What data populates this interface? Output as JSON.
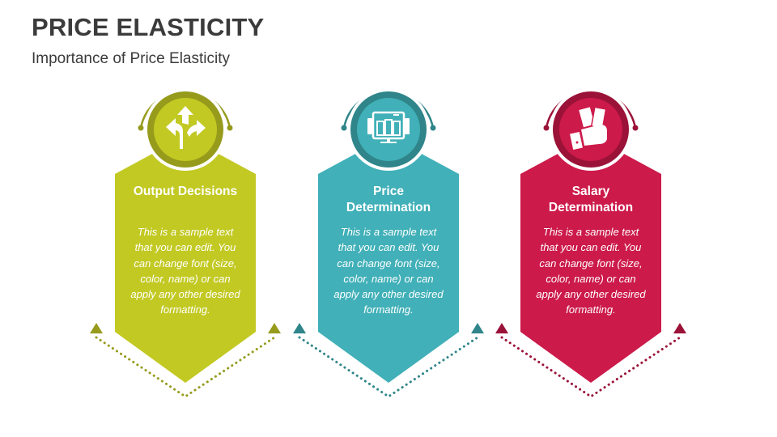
{
  "header": {
    "title": "PRICE ELASTICITY",
    "subtitle": "Importance of Price Elasticity"
  },
  "cards": [
    {
      "title": "Output Decisions",
      "body": "This is a sample text that you can edit. You can change font (size, color, name) or can apply any other desired formatting.",
      "icon": "direction-arrows-icon",
      "color": "#c2c923",
      "dark": "#969b1c"
    },
    {
      "title": "Price Determination",
      "body": "This is a sample text that you can edit. You can change font (size, color, name) or can apply any other desired formatting.",
      "icon": "monitor-dashboard-icon",
      "color": "#41b0b8",
      "dark": "#2f8589"
    },
    {
      "title": "Salary Determination",
      "body": "This is a sample text that you can edit. You can change font (size, color, name) or can apply any other desired formatting.",
      "icon": "hand-money-icon",
      "color": "#cc1a4a",
      "dark": "#9b1238"
    }
  ]
}
